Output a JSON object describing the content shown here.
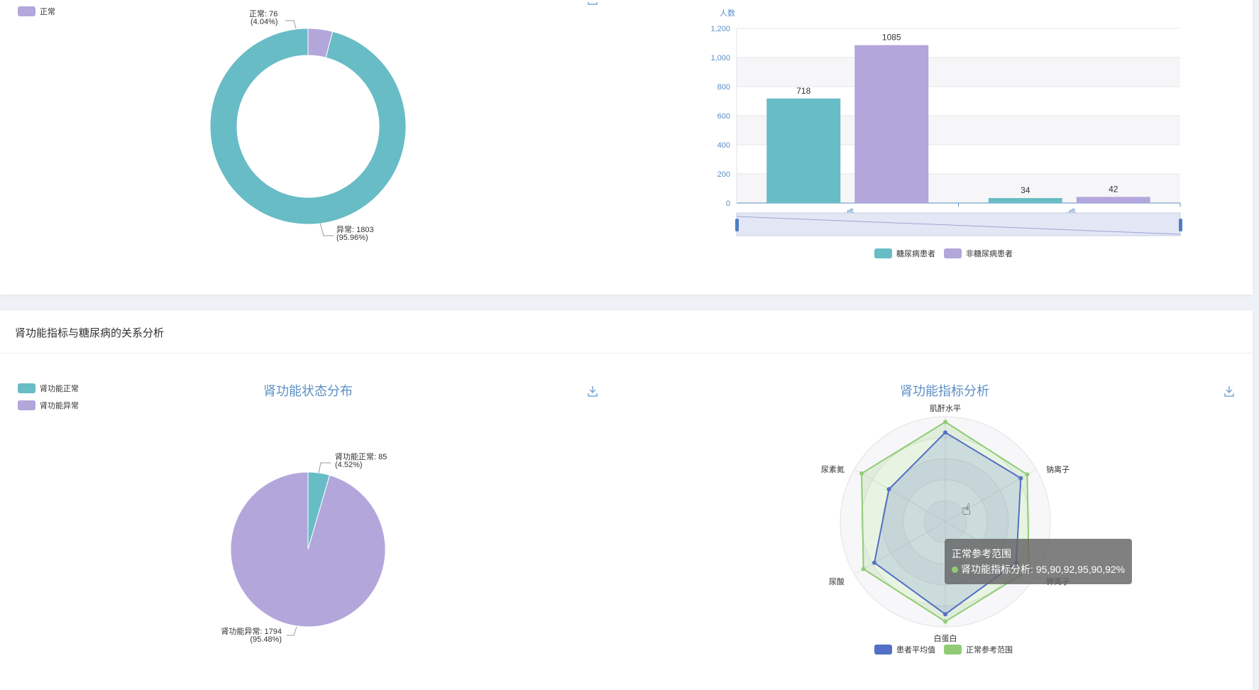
{
  "colors": {
    "teal": "#68bcc6",
    "purple": "#b2a6db",
    "blue": "#5470c6",
    "green": "#91cc75",
    "axis": "#5b8fc5"
  },
  "top_left": {
    "legend": [
      {
        "label": "正常",
        "color": "#b2a6db"
      }
    ],
    "label_normal_1": "正常: 76",
    "label_normal_2": "(4.04%)",
    "label_abnormal_1": "异常: 1803",
    "label_abnormal_2": "(95.96%)"
  },
  "top_right": {
    "y_unit": "人数",
    "legend": [
      {
        "label": "糖尿病患者",
        "color": "#68bcc6"
      },
      {
        "label": "非糖尿病患者",
        "color": "#b2a6db"
      }
    ]
  },
  "section2": {
    "title": "肾功能指标与糖尿病的关系分析"
  },
  "bottom_left": {
    "title": "肾功能状态分布",
    "legend": [
      {
        "label": "肾功能正常",
        "color": "#68bcc6"
      },
      {
        "label": "肾功能异常",
        "color": "#b2a6db"
      }
    ],
    "label_normal_1": "肾功能正常: 85",
    "label_normal_2": "(4.52%)",
    "label_abnormal_1": "肾功能异常: 1794",
    "label_abnormal_2": "(95.48%)"
  },
  "bottom_right": {
    "title": "肾功能指标分析",
    "legend": [
      {
        "label": "患者平均值",
        "color": "#5470c6"
      },
      {
        "label": "正常参考范围",
        "color": "#91cc75"
      }
    ],
    "tooltip": {
      "title": "正常参考范围",
      "line": "肾功能指标分析: 95,90,92,95,90,92%"
    }
  },
  "chart_data": [
    {
      "type": "pie",
      "donut": true,
      "slices": [
        {
          "name": "正常",
          "value": 76,
          "percent": 4.04
        },
        {
          "name": "异常",
          "value": 1803,
          "percent": 95.96
        }
      ]
    },
    {
      "type": "bar",
      "categories": [
        "异常",
        "正常"
      ],
      "series": [
        {
          "name": "糖尿病患者",
          "values": [
            718,
            34
          ]
        },
        {
          "name": "非糖尿病患者",
          "values": [
            1085,
            42
          ]
        }
      ],
      "ylabel": "人数",
      "ylim": [
        0,
        1200
      ],
      "yticks": [
        0,
        200,
        400,
        600,
        800,
        1000,
        1200
      ],
      "ytick_labels": [
        "0",
        "200",
        "400",
        "600",
        "800",
        "1,000",
        "1,200"
      ],
      "legend": "bottom"
    },
    {
      "type": "pie",
      "title": "肾功能状态分布",
      "slices": [
        {
          "name": "肾功能正常",
          "value": 85,
          "percent": 4.52
        },
        {
          "name": "肾功能异常",
          "value": 1794,
          "percent": 95.48
        }
      ]
    },
    {
      "type": "radar",
      "title": "肾功能指标分析",
      "indicators": [
        "肌酐水平",
        "钠离子",
        "钾离子",
        "白蛋白",
        "尿酸",
        "尿素氮"
      ],
      "max": 100,
      "series": [
        {
          "name": "患者平均值",
          "values": [
            85,
            83,
            78,
            88,
            78,
            62
          ]
        },
        {
          "name": "正常参考范围",
          "values": [
            95,
            90,
            92,
            95,
            90,
            92
          ]
        }
      ]
    }
  ]
}
